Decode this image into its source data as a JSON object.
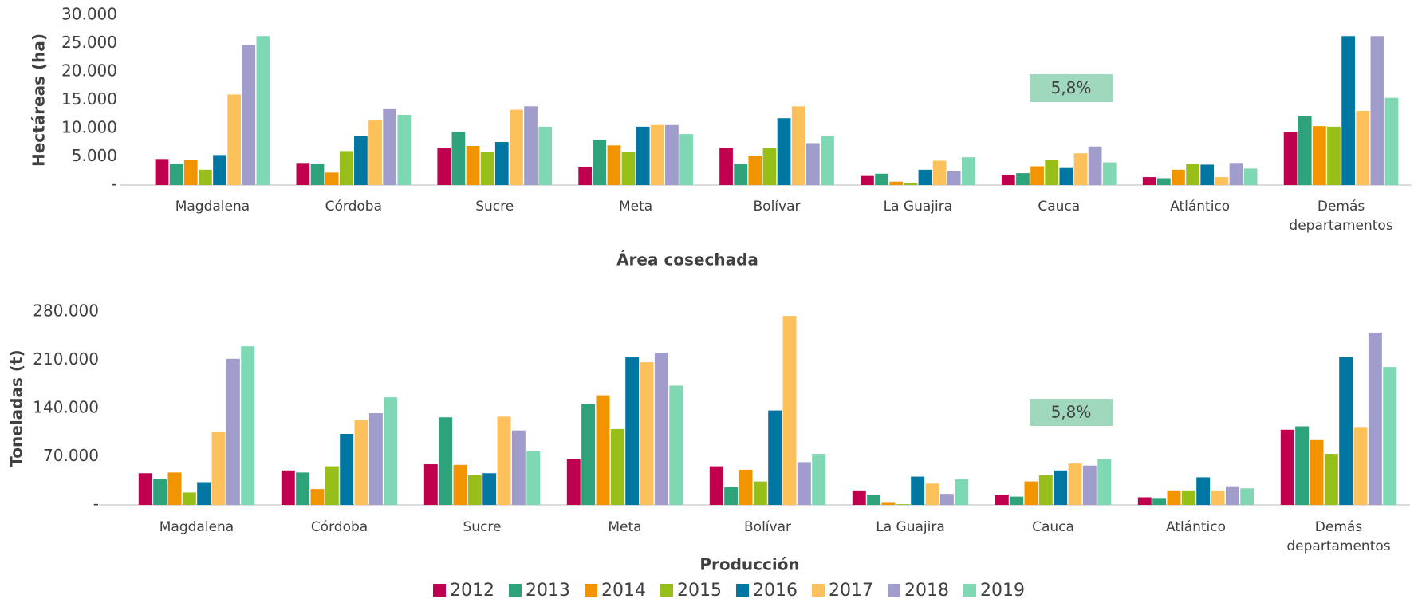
{
  "chart_data": [
    {
      "type": "bar",
      "title": "Área cosechada",
      "y_label": "Hectáreas (ha)",
      "annotation": "5,8%",
      "categories": [
        "Magdalena",
        "Córdoba",
        "Sucre",
        "Meta",
        "Bolívar",
        "La Guajira",
        "Cauca",
        "Atlántico",
        "Demás departamentos"
      ],
      "ylim": [
        0,
        30000
      ],
      "yticks": [
        {
          "value": 0,
          "label": "-"
        },
        {
          "value": 5000,
          "label": "5.000"
        },
        {
          "value": 10000,
          "label": "10.000"
        },
        {
          "value": 15000,
          "label": "15.000"
        },
        {
          "value": 20000,
          "label": "20.000"
        },
        {
          "value": 25000,
          "label": "25.000"
        },
        {
          "value": 30000,
          "label": "30.000"
        }
      ],
      "series": [
        {
          "name": "2012",
          "color": "#c0004e",
          "values": [
            4600,
            3900,
            6600,
            3200,
            6600,
            1600,
            1700,
            1400,
            9300
          ]
        },
        {
          "name": "2013",
          "color": "#2ea27a",
          "values": [
            3800,
            3800,
            9400,
            8000,
            3700,
            2000,
            2100,
            1200,
            12200
          ]
        },
        {
          "name": "2014",
          "color": "#f29400",
          "values": [
            4500,
            2200,
            6900,
            7000,
            5200,
            600,
            3300,
            2700,
            10400
          ]
        },
        {
          "name": "2015",
          "color": "#97be19",
          "values": [
            2700,
            6000,
            5800,
            5800,
            6500,
            300,
            4400,
            3800,
            10300
          ]
        },
        {
          "name": "2016",
          "color": "#0077a3",
          "values": [
            5300,
            8600,
            7600,
            10300,
            11800,
            2700,
            3000,
            3600,
            26300
          ]
        },
        {
          "name": "2017",
          "color": "#fdc15b",
          "values": [
            16000,
            11400,
            13300,
            10600,
            13900,
            4300,
            5600,
            1400,
            13100
          ]
        },
        {
          "name": "2018",
          "color": "#a09ccb",
          "values": [
            24700,
            13400,
            13900,
            10600,
            7400,
            2400,
            6800,
            3900,
            26300
          ]
        },
        {
          "name": "2019",
          "color": "#7dd8b3",
          "values": [
            26300,
            12400,
            10300,
            9000,
            8600,
            4900,
            4000,
            2900,
            15400
          ]
        }
      ]
    },
    {
      "type": "bar",
      "title": "Producción",
      "y_label": "Toneladas (t)",
      "annotation": "5,8%",
      "categories": [
        "Magdalena",
        "Córdoba",
        "Sucre",
        "Meta",
        "Bolívar",
        "La Guajira",
        "Cauca",
        "Atlántico",
        "Demás departamentos"
      ],
      "ylim": [
        0,
        280000
      ],
      "yticks": [
        {
          "value": 0,
          "label": "-"
        },
        {
          "value": 70000,
          "label": "70.000"
        },
        {
          "value": 140000,
          "label": "140.000"
        },
        {
          "value": 210000,
          "label": "210.000"
        },
        {
          "value": 280000,
          "label": "280.000"
        }
      ],
      "series": [
        {
          "name": "2012",
          "color": "#c0004e",
          "values": [
            46000,
            50000,
            59000,
            66000,
            56000,
            21000,
            15000,
            11000,
            109000
          ]
        },
        {
          "name": "2013",
          "color": "#2ea27a",
          "values": [
            37000,
            47000,
            127000,
            146000,
            26000,
            15000,
            12000,
            10000,
            114000
          ]
        },
        {
          "name": "2014",
          "color": "#f29400",
          "values": [
            47000,
            23000,
            58000,
            159000,
            51000,
            3000,
            34000,
            21000,
            94000
          ]
        },
        {
          "name": "2015",
          "color": "#97be19",
          "values": [
            18000,
            56000,
            43000,
            110000,
            34000,
            1000,
            43000,
            21000,
            74000
          ]
        },
        {
          "name": "2016",
          "color": "#0077a3",
          "values": [
            33000,
            103000,
            46000,
            214000,
            137000,
            41000,
            50000,
            40000,
            215000
          ]
        },
        {
          "name": "2017",
          "color": "#fdc15b",
          "values": [
            106000,
            123000,
            128000,
            207000,
            274000,
            31000,
            60000,
            21000,
            113000
          ]
        },
        {
          "name": "2018",
          "color": "#a09ccb",
          "values": [
            212000,
            133000,
            108000,
            221000,
            62000,
            16000,
            57000,
            27000,
            250000
          ]
        },
        {
          "name": "2019",
          "color": "#7dd8b3",
          "values": [
            230000,
            156000,
            78000,
            173000,
            74000,
            37000,
            66000,
            24000,
            200000
          ]
        }
      ]
    }
  ]
}
